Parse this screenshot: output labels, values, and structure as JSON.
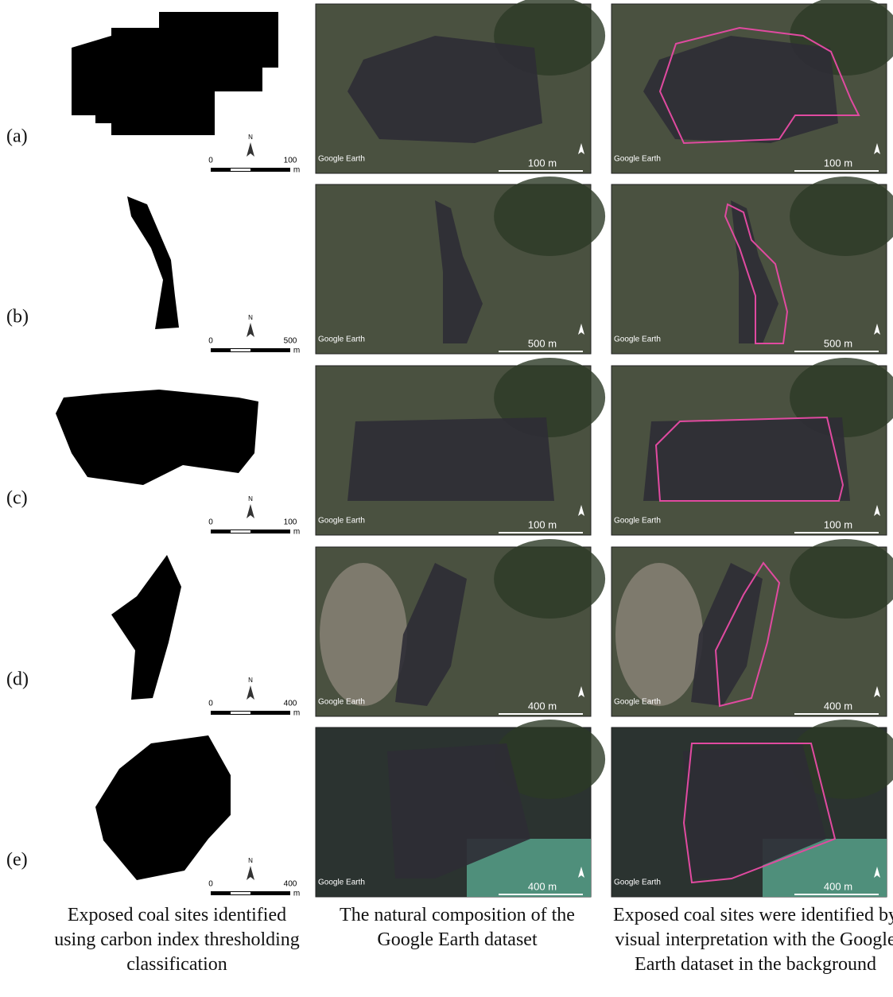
{
  "rows": [
    {
      "label": "(a)",
      "scale": {
        "start": "0",
        "end": "100",
        "unit": "m",
        "north": "N"
      },
      "photo_scale": "100 m",
      "attribution": "Google Earth"
    },
    {
      "label": "(b)",
      "scale": {
        "start": "0",
        "end": "500",
        "unit": "m",
        "north": "N"
      },
      "photo_scale": "500 m",
      "attribution": "Google Earth"
    },
    {
      "label": "(c)",
      "scale": {
        "start": "0",
        "end": "100",
        "unit": "m",
        "north": "N"
      },
      "photo_scale": "100 m",
      "attribution": "Google Earth"
    },
    {
      "label": "(d)",
      "scale": {
        "start": "0",
        "end": "400",
        "unit": "m",
        "north": "N"
      },
      "photo_scale": "400 m",
      "attribution": "Google Earth"
    },
    {
      "label": "(e)",
      "scale": {
        "start": "0",
        "end": "400",
        "unit": "m",
        "north": "N"
      },
      "photo_scale": "400 m",
      "attribution": "Google Earth"
    }
  ],
  "captions": [
    "Exposed coal sites identified using carbon index thresholding classification",
    "The natural composition of the Google Earth dataset",
    "Exposed coal sites were identified by visual interpretation with the Google Earth dataset in the background"
  ]
}
